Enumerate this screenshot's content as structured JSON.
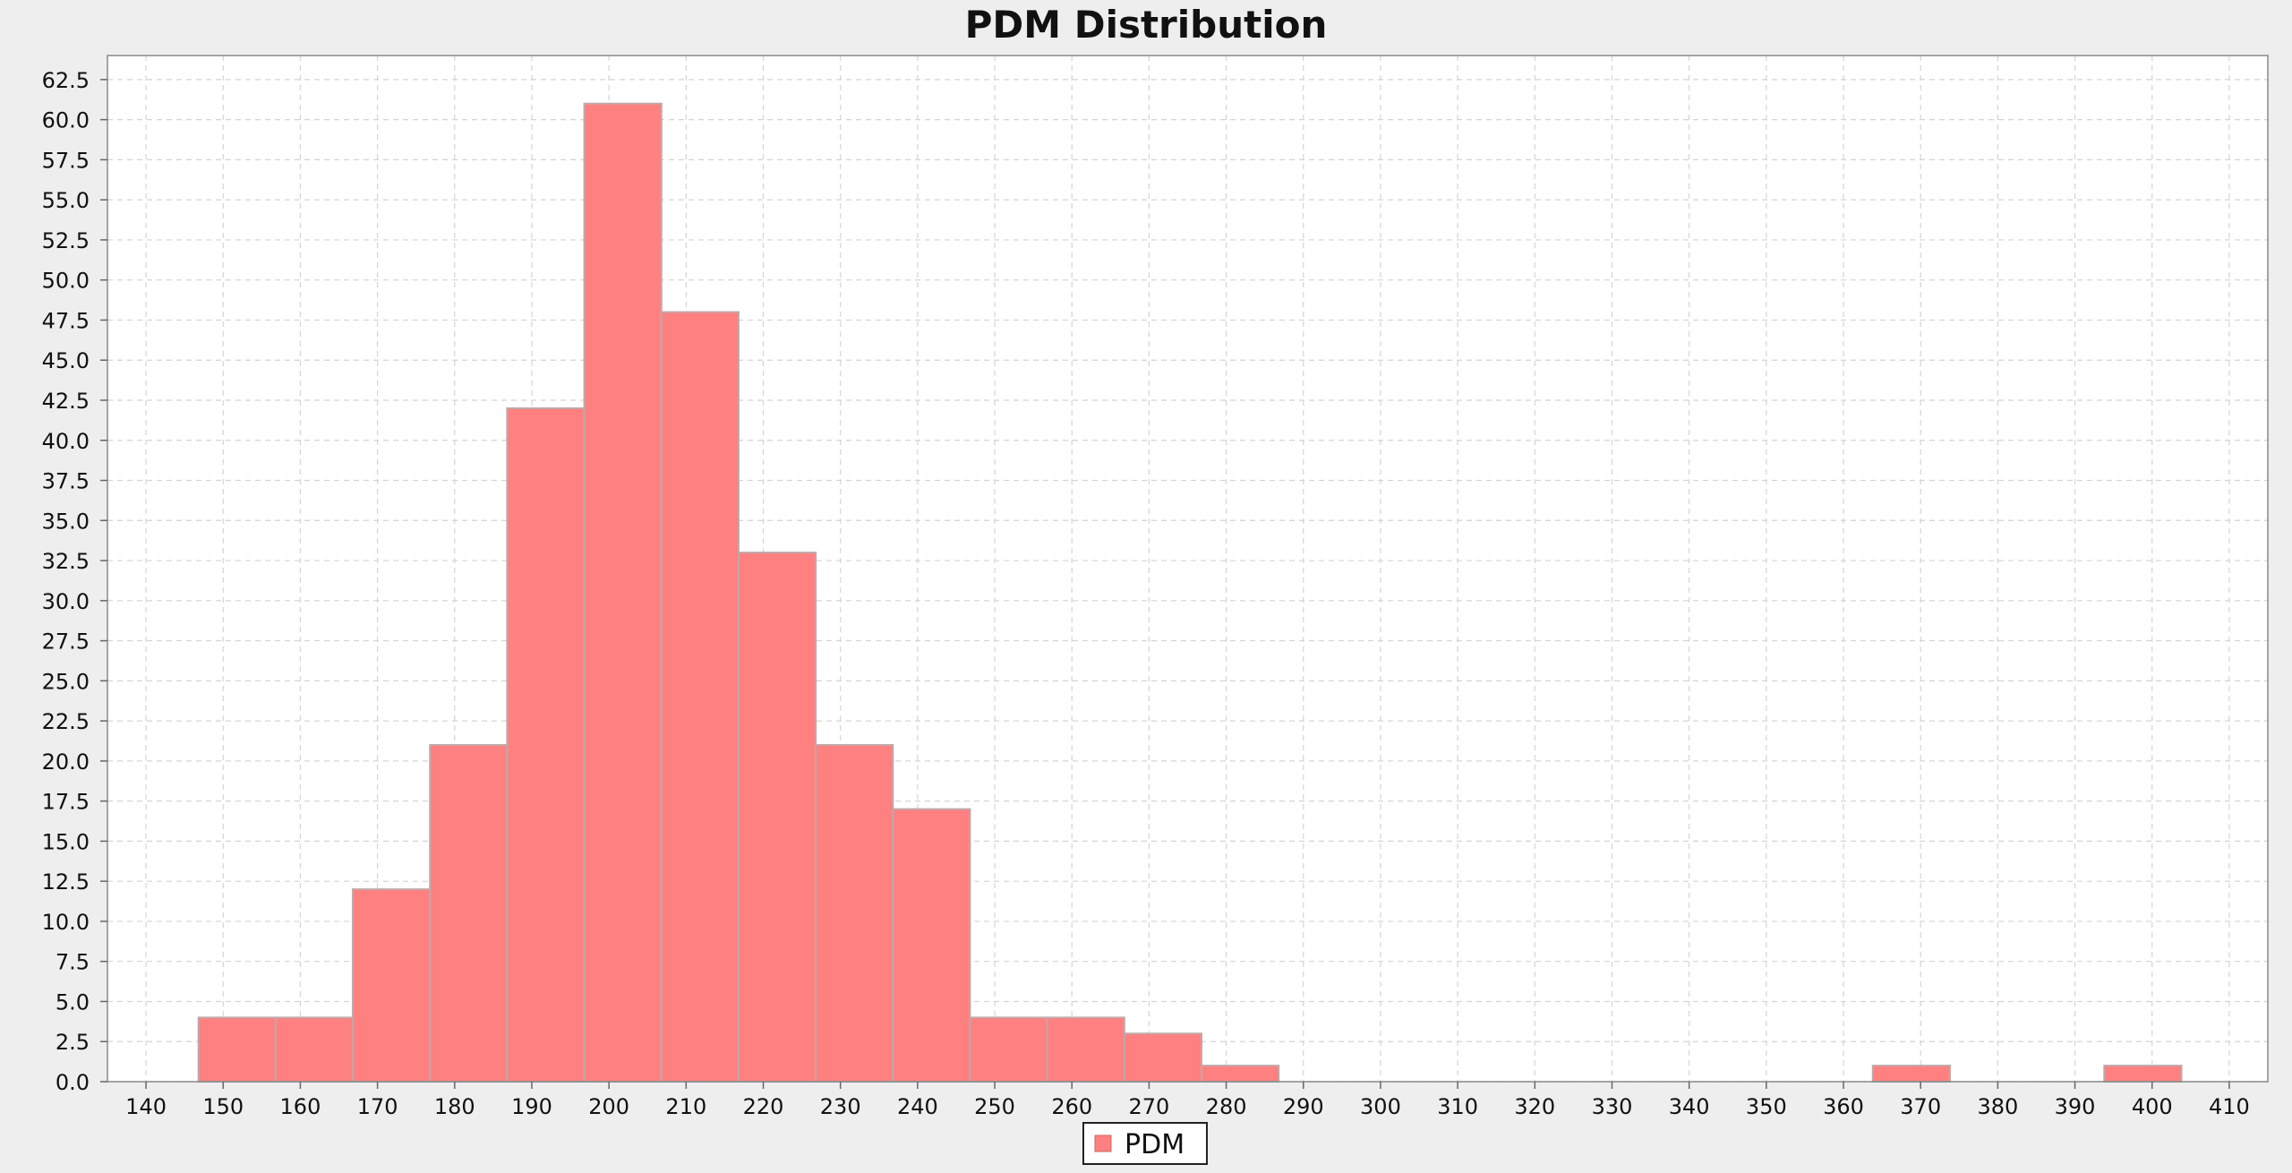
{
  "chart_data": {
    "type": "bar",
    "title": "PDM Distribution",
    "xlabel": "",
    "ylabel": "",
    "xlim": [
      135,
      415
    ],
    "ylim": [
      0,
      64
    ],
    "x_ticks": [
      140,
      150,
      160,
      170,
      180,
      190,
      200,
      210,
      220,
      230,
      240,
      250,
      260,
      270,
      280,
      290,
      300,
      310,
      320,
      330,
      340,
      350,
      360,
      370,
      380,
      390,
      400,
      410
    ],
    "x_tick_labels": [
      "140",
      "150",
      "160",
      "170",
      "180",
      "190",
      "200",
      "210",
      "220",
      "230",
      "240",
      "250",
      "260",
      "270",
      "280",
      "290",
      "300",
      "310",
      "320",
      "330",
      "340",
      "350",
      "360",
      "370",
      "380",
      "390",
      "400",
      "410"
    ],
    "y_ticks": [
      0,
      2.5,
      5,
      7.5,
      10,
      12.5,
      15,
      17.5,
      20,
      22.5,
      25,
      27.5,
      30,
      32.5,
      35,
      37.5,
      40,
      42.5,
      45,
      47.5,
      50,
      52.5,
      55,
      57.5,
      60,
      62.5
    ],
    "y_tick_labels": [
      "0.0",
      "2.5",
      "5.0",
      "7.5",
      "10.0",
      "12.5",
      "15.0",
      "17.5",
      "20.0",
      "22.5",
      "25.0",
      "27.5",
      "30.0",
      "32.5",
      "35.0",
      "37.5",
      "40.0",
      "42.5",
      "45.0",
      "47.5",
      "50.0",
      "52.5",
      "55.0",
      "57.5",
      "60.0",
      "62.5"
    ],
    "grid": true,
    "legend_position": "bottom-center",
    "series": [
      {
        "name": "PDM",
        "color": "#ff8080",
        "bins": [
          {
            "start": 146.8,
            "end": 156.8,
            "count": 4
          },
          {
            "start": 156.8,
            "end": 166.8,
            "count": 4
          },
          {
            "start": 166.8,
            "end": 176.8,
            "count": 12
          },
          {
            "start": 176.8,
            "end": 186.8,
            "count": 21
          },
          {
            "start": 186.8,
            "end": 196.8,
            "count": 42
          },
          {
            "start": 196.8,
            "end": 206.8,
            "count": 61
          },
          {
            "start": 206.8,
            "end": 216.8,
            "count": 48
          },
          {
            "start": 216.8,
            "end": 226.8,
            "count": 33
          },
          {
            "start": 226.8,
            "end": 236.8,
            "count": 21
          },
          {
            "start": 236.8,
            "end": 246.8,
            "count": 17
          },
          {
            "start": 246.8,
            "end": 256.8,
            "count": 4
          },
          {
            "start": 256.8,
            "end": 266.8,
            "count": 4
          },
          {
            "start": 266.8,
            "end": 276.8,
            "count": 3
          },
          {
            "start": 276.8,
            "end": 286.8,
            "count": 1
          },
          {
            "start": 363.8,
            "end": 373.8,
            "count": 1
          },
          {
            "start": 393.8,
            "end": 403.8,
            "count": 1
          }
        ]
      }
    ]
  }
}
